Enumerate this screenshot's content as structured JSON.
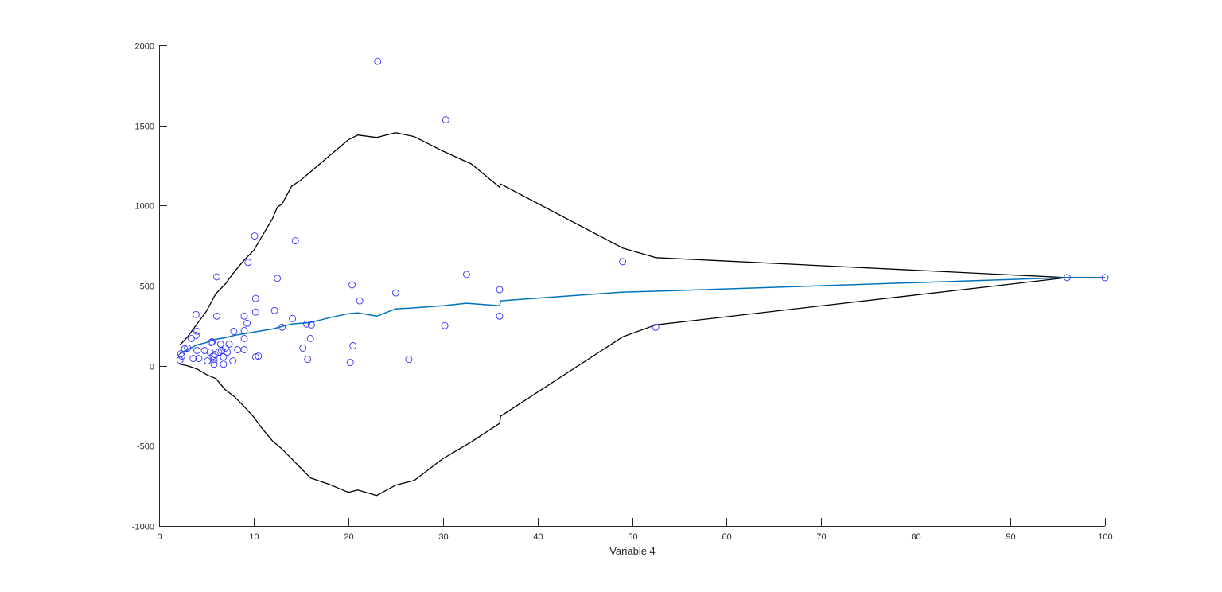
{
  "chart_data": {
    "type": "scatter",
    "title": "",
    "xlabel": "Variable 4",
    "ylabel": "",
    "xlim": [
      0,
      100
    ],
    "ylim": [
      -1000,
      2000
    ],
    "xticks": [
      0,
      10,
      20,
      30,
      40,
      50,
      60,
      70,
      80,
      90,
      100
    ],
    "yticks": [
      -1000,
      -500,
      0,
      500,
      1000,
      1500,
      2000
    ],
    "grid": false,
    "legend": null,
    "colors": {
      "scatter": "#3333ff",
      "fit_line": "#0072bd",
      "bounds": "#000000",
      "axis": "#262626"
    },
    "series": [
      {
        "name": "observations",
        "kind": "scatter",
        "marker": "circle-open",
        "points": [
          [
            2.2,
            35
          ],
          [
            2.3,
            75
          ],
          [
            2.4,
            60
          ],
          [
            2.7,
            105
          ],
          [
            3.0,
            110
          ],
          [
            3.4,
            170
          ],
          [
            3.6,
            45
          ],
          [
            3.9,
            190
          ],
          [
            3.9,
            320
          ],
          [
            4.0,
            215
          ],
          [
            4.0,
            95
          ],
          [
            4.2,
            45
          ],
          [
            4.8,
            95
          ],
          [
            5.1,
            30
          ],
          [
            5.4,
            85
          ],
          [
            5.5,
            145
          ],
          [
            5.6,
            150
          ],
          [
            5.7,
            60
          ],
          [
            5.8,
            40
          ],
          [
            5.8,
            10
          ],
          [
            5.9,
            70
          ],
          [
            6.1,
            555
          ],
          [
            6.1,
            310
          ],
          [
            6.3,
            85
          ],
          [
            6.5,
            135
          ],
          [
            6.6,
            95
          ],
          [
            6.8,
            55
          ],
          [
            6.8,
            10
          ],
          [
            7.0,
            110
          ],
          [
            7.2,
            85
          ],
          [
            7.4,
            135
          ],
          [
            7.8,
            30
          ],
          [
            7.9,
            215
          ],
          [
            8.3,
            100
          ],
          [
            9.0,
            310
          ],
          [
            9.0,
            220
          ],
          [
            9.0,
            170
          ],
          [
            9.0,
            100
          ],
          [
            9.3,
            265
          ],
          [
            9.4,
            645
          ],
          [
            10.1,
            810
          ],
          [
            10.2,
            420
          ],
          [
            10.2,
            335
          ],
          [
            10.2,
            55
          ],
          [
            10.5,
            60
          ],
          [
            12.2,
            345
          ],
          [
            12.5,
            545
          ],
          [
            13.0,
            240
          ],
          [
            14.1,
            295
          ],
          [
            14.4,
            780
          ],
          [
            15.2,
            110
          ],
          [
            15.6,
            260
          ],
          [
            15.7,
            40
          ],
          [
            16.0,
            170
          ],
          [
            16.1,
            255
          ],
          [
            20.2,
            20
          ],
          [
            20.4,
            505
          ],
          [
            20.5,
            125
          ],
          [
            21.2,
            405
          ],
          [
            23.1,
            1900
          ],
          [
            25.0,
            455
          ],
          [
            26.4,
            40
          ],
          [
            30.2,
            250
          ],
          [
            30.3,
            1535
          ],
          [
            32.5,
            570
          ],
          [
            36.0,
            475
          ],
          [
            36.0,
            310
          ],
          [
            49.0,
            650
          ],
          [
            52.5,
            240
          ],
          [
            96.0,
            550
          ],
          [
            100.0,
            550
          ]
        ]
      },
      {
        "name": "fit",
        "kind": "line",
        "points": [
          [
            2.2,
            80
          ],
          [
            3.0,
            100
          ],
          [
            4.0,
            130
          ],
          [
            5.0,
            145
          ],
          [
            5.6,
            160
          ],
          [
            6.0,
            165
          ],
          [
            6.5,
            170
          ],
          [
            7.0,
            175
          ],
          [
            8.0,
            190
          ],
          [
            10.0,
            210
          ],
          [
            12.0,
            230
          ],
          [
            13.0,
            245
          ],
          [
            14.0,
            260
          ],
          [
            15.0,
            265
          ],
          [
            16.0,
            270
          ],
          [
            18.0,
            300
          ],
          [
            20.0,
            325
          ],
          [
            21.0,
            330
          ],
          [
            23.0,
            310
          ],
          [
            25.0,
            355
          ],
          [
            26.5,
            360
          ],
          [
            30.0,
            375
          ],
          [
            32.5,
            390
          ],
          [
            36.0,
            375
          ],
          [
            36.1,
            405
          ],
          [
            49.0,
            460
          ],
          [
            52.5,
            465
          ],
          [
            96.0,
            550
          ],
          [
            100.0,
            550
          ]
        ]
      },
      {
        "name": "upper_bound",
        "kind": "line",
        "points": [
          [
            2.2,
            130
          ],
          [
            3.0,
            180
          ],
          [
            4.0,
            260
          ],
          [
            5.0,
            340
          ],
          [
            6.0,
            450
          ],
          [
            7.0,
            510
          ],
          [
            8.0,
            590
          ],
          [
            9.0,
            660
          ],
          [
            10.0,
            720
          ],
          [
            11.0,
            820
          ],
          [
            12.0,
            920
          ],
          [
            12.5,
            990
          ],
          [
            13.0,
            1010
          ],
          [
            14.0,
            1120
          ],
          [
            15.0,
            1160
          ],
          [
            16.0,
            1210
          ],
          [
            18.0,
            1310
          ],
          [
            20.0,
            1410
          ],
          [
            21.0,
            1440
          ],
          [
            23.0,
            1425
          ],
          [
            25.0,
            1455
          ],
          [
            27.0,
            1430
          ],
          [
            30.0,
            1340
          ],
          [
            33.0,
            1260
          ],
          [
            36.0,
            1115
          ],
          [
            36.1,
            1135
          ],
          [
            49.0,
            735
          ],
          [
            52.5,
            675
          ],
          [
            96.0,
            550
          ],
          [
            100.0,
            550
          ]
        ]
      },
      {
        "name": "lower_bound",
        "kind": "line",
        "points": [
          [
            2.2,
            10
          ],
          [
            3.0,
            0
          ],
          [
            4.0,
            -20
          ],
          [
            5.0,
            -55
          ],
          [
            6.0,
            -80
          ],
          [
            7.0,
            -150
          ],
          [
            8.0,
            -195
          ],
          [
            9.0,
            -255
          ],
          [
            10.0,
            -320
          ],
          [
            11.0,
            -400
          ],
          [
            12.0,
            -470
          ],
          [
            13.0,
            -520
          ],
          [
            14.0,
            -580
          ],
          [
            15.0,
            -640
          ],
          [
            16.0,
            -700
          ],
          [
            18.0,
            -740
          ],
          [
            20.0,
            -790
          ],
          [
            21.0,
            -775
          ],
          [
            23.0,
            -810
          ],
          [
            25.0,
            -745
          ],
          [
            27.0,
            -715
          ],
          [
            30.0,
            -580
          ],
          [
            33.0,
            -475
          ],
          [
            36.0,
            -360
          ],
          [
            36.1,
            -315
          ],
          [
            49.0,
            180
          ],
          [
            52.5,
            255
          ],
          [
            96.0,
            550
          ],
          [
            100.0,
            550
          ]
        ]
      }
    ]
  },
  "axes": {
    "x_label": "Variable 4",
    "x_tick_labels": [
      "0",
      "10",
      "20",
      "30",
      "40",
      "50",
      "60",
      "70",
      "80",
      "90",
      "100"
    ],
    "y_tick_labels": [
      "-1000",
      "-500",
      "0",
      "500",
      "1000",
      "1500",
      "2000"
    ]
  }
}
